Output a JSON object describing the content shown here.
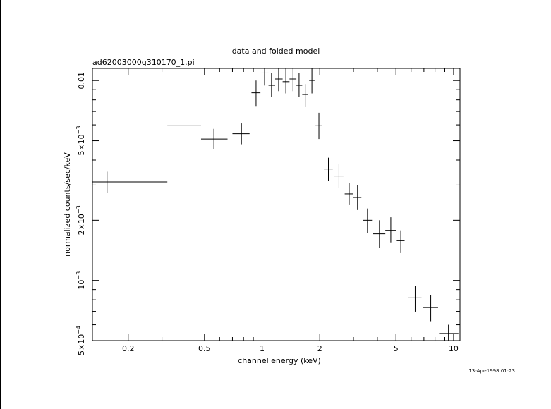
{
  "chart_data": {
    "type": "scatter",
    "title": "data and folded model",
    "subtitle": "ad62003000g310170_1.pi",
    "xlabel": "channel energy (keV)",
    "ylabel": "normalized counts/sec/keV",
    "xscale": "log",
    "yscale": "log",
    "xlim": [
      0.13,
      10.8
    ],
    "ylim": [
      0.0005,
      0.0115
    ],
    "x_ticks": [
      {
        "value": 0.2,
        "label": "0.2"
      },
      {
        "value": 0.5,
        "label": "0.5"
      },
      {
        "value": 1,
        "label": "1"
      },
      {
        "value": 2,
        "label": "2"
      },
      {
        "value": 5,
        "label": "5"
      },
      {
        "value": 10,
        "label": "10"
      }
    ],
    "y_ticks": [
      {
        "value": 0.01,
        "label": "0.01"
      },
      {
        "value": 0.005,
        "mant": "5×10",
        "exp": "−3"
      },
      {
        "value": 0.002,
        "mant": "2×10",
        "exp": "−3"
      },
      {
        "value": 0.001,
        "mant": "10",
        "exp": "−3"
      },
      {
        "value": 0.0005,
        "mant": "5×10",
        "exp": "−4"
      }
    ],
    "grid": false,
    "points": [
      {
        "x": 0.155,
        "xlo": 0.13,
        "xhi": 0.32,
        "y": 0.00311,
        "ylo": 0.00274,
        "yhi": 0.0035
      },
      {
        "x": 0.4,
        "xlo": 0.32,
        "xhi": 0.48,
        "y": 0.00594,
        "ylo": 0.00526,
        "yhi": 0.0067
      },
      {
        "x": 0.56,
        "xlo": 0.48,
        "xhi": 0.66,
        "y": 0.0051,
        "ylo": 0.00455,
        "yhi": 0.00573
      },
      {
        "x": 0.78,
        "xlo": 0.7,
        "xhi": 0.86,
        "y": 0.00542,
        "ylo": 0.0048,
        "yhi": 0.0061
      },
      {
        "x": 0.93,
        "xlo": 0.88,
        "xhi": 0.98,
        "y": 0.00868,
        "ylo": 0.0074,
        "yhi": 0.01
      },
      {
        "x": 1.03,
        "xlo": 0.99,
        "xhi": 1.08,
        "y": 0.01091,
        "ylo": 0.00944,
        "yhi": 0.0116
      },
      {
        "x": 1.12,
        "xlo": 1.08,
        "xhi": 1.17,
        "y": 0.00946,
        "ylo": 0.00829,
        "yhi": 0.0109
      },
      {
        "x": 1.22,
        "xlo": 1.17,
        "xhi": 1.28,
        "y": 0.01018,
        "ylo": 0.00885,
        "yhi": 0.0116
      },
      {
        "x": 1.33,
        "xlo": 1.28,
        "xhi": 1.39,
        "y": 0.00987,
        "ylo": 0.00862,
        "yhi": 0.0116
      },
      {
        "x": 1.45,
        "xlo": 1.39,
        "xhi": 1.51,
        "y": 0.01018,
        "ylo": 0.00885,
        "yhi": 0.0116
      },
      {
        "x": 1.56,
        "xlo": 1.51,
        "xhi": 1.62,
        "y": 0.00946,
        "ylo": 0.00829,
        "yhi": 0.0109
      },
      {
        "x": 1.68,
        "xlo": 1.62,
        "xhi": 1.74,
        "y": 0.00851,
        "ylo": 0.00736,
        "yhi": 0.0096
      },
      {
        "x": 1.82,
        "xlo": 1.76,
        "xhi": 1.88,
        "y": 0.01001,
        "ylo": 0.00862,
        "yhi": 0.0116
      },
      {
        "x": 1.98,
        "xlo": 1.9,
        "xhi": 2.06,
        "y": 0.00594,
        "ylo": 0.0051,
        "yhi": 0.0069
      },
      {
        "x": 2.22,
        "xlo": 2.1,
        "xhi": 2.34,
        "y": 0.00361,
        "ylo": 0.00316,
        "yhi": 0.00411
      },
      {
        "x": 2.52,
        "xlo": 2.38,
        "xhi": 2.66,
        "y": 0.00333,
        "ylo": 0.0029,
        "yhi": 0.00382
      },
      {
        "x": 2.85,
        "xlo": 2.7,
        "xhi": 3.0,
        "y": 0.00271,
        "ylo": 0.00238,
        "yhi": 0.00306
      },
      {
        "x": 3.15,
        "xlo": 3.0,
        "xhi": 3.3,
        "y": 0.0026,
        "ylo": 0.00225,
        "yhi": 0.003
      },
      {
        "x": 3.55,
        "xlo": 3.35,
        "xhi": 3.75,
        "y": 0.002,
        "ylo": 0.00173,
        "yhi": 0.00229
      },
      {
        "x": 4.1,
        "xlo": 3.8,
        "xhi": 4.4,
        "y": 0.00171,
        "ylo": 0.00146,
        "yhi": 0.002
      },
      {
        "x": 4.7,
        "xlo": 4.4,
        "xhi": 5.0,
        "y": 0.00178,
        "ylo": 0.00155,
        "yhi": 0.00207
      },
      {
        "x": 5.3,
        "xlo": 5.05,
        "xhi": 5.55,
        "y": 0.00158,
        "ylo": 0.00137,
        "yhi": 0.00178
      },
      {
        "x": 6.3,
        "xlo": 5.8,
        "xhi": 6.8,
        "y": 0.000818,
        "ylo": 0.000698,
        "yhi": 0.00094
      },
      {
        "x": 7.6,
        "xlo": 6.9,
        "xhi": 8.3,
        "y": 0.000732,
        "ylo": 0.000625,
        "yhi": 0.000845
      },
      {
        "x": 9.4,
        "xlo": 8.4,
        "xhi": 10.6,
        "y": 0.000543,
        "ylo": 0.00048,
        "yhi": 0.0006
      }
    ],
    "footer_text": "13-Apr-1998 01:23"
  }
}
